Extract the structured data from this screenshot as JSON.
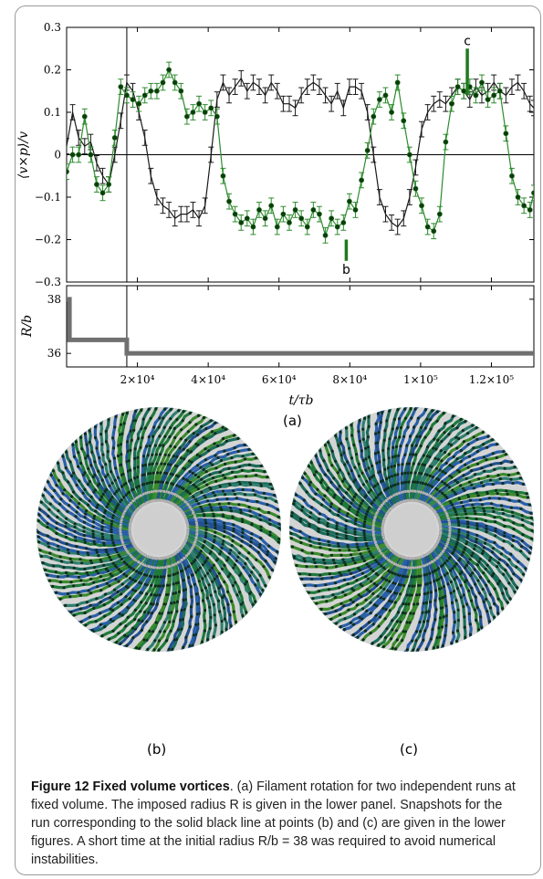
{
  "chart_data": [
    {
      "type": "line",
      "panel": "top",
      "ylabel": "⟨v×p⟩/v",
      "ylim": [
        -0.3,
        0.3
      ],
      "xlim": [
        0,
        132000
      ],
      "yticks": [
        0.3,
        0.2,
        0.1,
        0,
        -0.1,
        -0.2,
        -0.3
      ],
      "ytick_labels": [
        "0.3",
        "0.2",
        "0.1",
        "0",
        "−0.1",
        "−0.2",
        "−0.3"
      ],
      "vline_x": 17000,
      "hline_y": 0,
      "series": [
        {
          "color": "#1a1a1a",
          "markers": false,
          "x": [
            0,
            1700,
            3400,
            5100,
            6800,
            8500,
            10200,
            11900,
            13600,
            15300,
            17000,
            18700,
            20400,
            22100,
            23800,
            25500,
            27200,
            28900,
            30600,
            32300,
            34000,
            35700,
            37400,
            39100,
            40800,
            42500,
            44200,
            45900,
            47600,
            49300,
            51000,
            52700,
            54400,
            56100,
            57800,
            59500,
            61200,
            62900,
            64600,
            66300,
            68000,
            69700,
            71400,
            73100,
            74800,
            76500,
            78200,
            79900,
            81600,
            83300,
            85000,
            86700,
            88400,
            90100,
            91800,
            93500,
            95200,
            96900,
            98600,
            100300,
            102000,
            103700,
            105400,
            107100,
            108800,
            110500,
            112200,
            113900,
            115600,
            117300,
            119000,
            120700,
            122400,
            124100,
            125800,
            127500,
            129200,
            130900,
            132000
          ],
          "y": [
            0.02,
            0.1,
            0.04,
            0.02,
            0.03,
            -0.02,
            -0.05,
            -0.07,
            0.0,
            0.08,
            0.17,
            0.15,
            0.1,
            0.04,
            -0.05,
            -0.1,
            -0.12,
            -0.13,
            -0.15,
            -0.14,
            -0.14,
            -0.13,
            -0.15,
            -0.12,
            0.0,
            0.13,
            0.17,
            0.14,
            0.16,
            0.18,
            0.15,
            0.17,
            0.16,
            0.14,
            0.17,
            0.15,
            0.12,
            0.12,
            0.11,
            0.14,
            0.16,
            0.17,
            0.16,
            0.14,
            0.12,
            0.15,
            0.11,
            0.16,
            0.16,
            0.15,
            0.1,
            0.0,
            -0.1,
            -0.14,
            -0.16,
            -0.17,
            -0.15,
            -0.1,
            -0.03,
            0.06,
            0.1,
            0.12,
            0.13,
            0.12,
            0.14,
            0.16,
            0.15,
            0.13,
            0.16,
            0.14,
            0.15,
            0.17,
            0.15,
            0.14,
            0.16,
            0.17,
            0.15,
            0.12,
            0.11
          ]
        },
        {
          "color": "#2e8b2e",
          "markers": true,
          "x": [
            0,
            1700,
            3400,
            5100,
            6800,
            8500,
            10200,
            11900,
            13600,
            15300,
            17000,
            18700,
            20400,
            22100,
            23800,
            25500,
            27200,
            28900,
            30600,
            32300,
            34000,
            35700,
            37400,
            39100,
            40800,
            42500,
            44200,
            45900,
            47600,
            49300,
            51000,
            52700,
            54400,
            56100,
            57800,
            59500,
            61200,
            62900,
            64600,
            66300,
            68000,
            69700,
            71400,
            73100,
            74800,
            76500,
            78200,
            79900,
            81600,
            83300,
            85000,
            86700,
            88400,
            90100,
            91800,
            93500,
            95200,
            96900,
            98600,
            100300,
            102000,
            103700,
            105400,
            107100,
            108800,
            110500,
            112200,
            113900,
            115600,
            117300,
            119000,
            120700,
            122400,
            124100,
            125800,
            127500,
            129200,
            130900,
            132000
          ],
          "y": [
            -0.04,
            0.0,
            0.0,
            0.09,
            0.0,
            -0.07,
            -0.09,
            -0.07,
            0.04,
            0.16,
            0.14,
            0.13,
            0.12,
            0.14,
            0.15,
            0.15,
            0.17,
            0.2,
            0.17,
            0.15,
            0.09,
            0.1,
            0.12,
            0.1,
            0.11,
            0.09,
            -0.05,
            -0.11,
            -0.14,
            -0.16,
            -0.15,
            -0.17,
            -0.13,
            -0.15,
            -0.12,
            -0.17,
            -0.14,
            -0.16,
            -0.13,
            -0.15,
            -0.17,
            -0.13,
            -0.14,
            -0.19,
            -0.15,
            -0.17,
            -0.16,
            -0.11,
            -0.13,
            -0.06,
            0.01,
            0.09,
            0.13,
            0.14,
            0.1,
            0.17,
            0.08,
            0.0,
            -0.08,
            -0.12,
            -0.17,
            -0.18,
            -0.14,
            0.03,
            0.12,
            0.16,
            0.15,
            0.16,
            0.14,
            0.17,
            0.13,
            0.14,
            0.15,
            0.05,
            -0.05,
            -0.1,
            -0.12,
            -0.13,
            -0.09
          ]
        }
      ],
      "markers": [
        {
          "label": "b",
          "x": 79000,
          "y_from": -0.2,
          "y_to": -0.25
        },
        {
          "label": "c",
          "x": 113200,
          "y_from": 0.14,
          "y_to": 0.25
        }
      ]
    },
    {
      "type": "line",
      "panel": "bottom",
      "ylabel": "R/b",
      "xlabel": "t/τb",
      "xlim": [
        0,
        132000
      ],
      "ylim": [
        35.5,
        38.5
      ],
      "yticks": [
        38,
        36
      ],
      "ytick_labels": [
        "38",
        "36"
      ],
      "xticks": [
        20000,
        40000,
        60000,
        80000,
        100000,
        120000
      ],
      "xtick_labels": [
        "2×10⁴",
        "4×10⁴",
        "6×10⁴",
        "8×10⁴",
        "1×10⁵",
        "1.2×10⁵"
      ],
      "vline_x": 17000,
      "series": [
        {
          "color": "#707070",
          "step": true,
          "x": [
            0,
            800,
            17000,
            132000
          ],
          "y": [
            38,
            36.5,
            36,
            36
          ]
        }
      ]
    }
  ],
  "labels": {
    "panel_a": "(a)",
    "panel_b": "(b)",
    "panel_c": "(c)",
    "marker_b": "b",
    "marker_c": "c"
  },
  "caption": {
    "title": "Figure 12 Fixed volume vortices",
    "text": ". (a) Filament rotation for two independent runs at fixed volume. The imposed radius R is given in the lower panel. Snapshots for the run corresponding to the solid black line at points (b) and (c) are given in the lower figures. A short time at the initial radius R/b = 38 was required to avoid numerical instabilities."
  }
}
